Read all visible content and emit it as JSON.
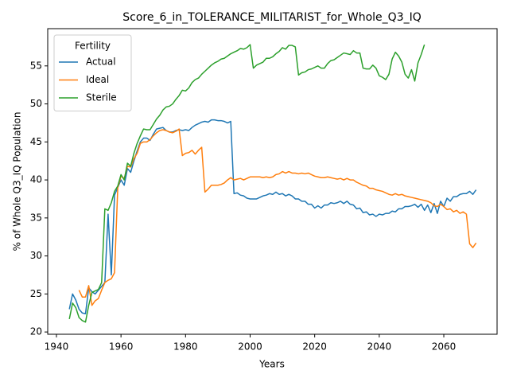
{
  "chart_data": {
    "type": "line",
    "title": "Score_6_in_TOLERANCE_MILITARIST_for_Whole_Q3_IQ",
    "xlabel": "Years",
    "ylabel": "% of Whole Q3_IQ Population",
    "legend_title": "Fertility",
    "legend": "upper left",
    "grid": false,
    "xlim": [
      1937.3,
      2076.5
    ],
    "xticks": [
      1940,
      1960,
      1980,
      2000,
      2020,
      2040,
      2060
    ],
    "ylim": [
      19.7,
      59.9
    ],
    "yticks": [
      20,
      25,
      30,
      35,
      40,
      45,
      50,
      55
    ],
    "x": [
      1944,
      1945,
      1946,
      1947,
      1948,
      1949,
      1950,
      1951,
      1952,
      1953,
      1954,
      1955,
      1956,
      1957,
      1958,
      1959,
      1960,
      1961,
      1962,
      1963,
      1964,
      1965,
      1966,
      1967,
      1968,
      1969,
      1970,
      1971,
      1972,
      1973,
      1974,
      1975,
      1976,
      1977,
      1978,
      1979,
      1980,
      1981,
      1982,
      1983,
      1984,
      1985,
      1986,
      1987,
      1988,
      1989,
      1990,
      1991,
      1992,
      1993,
      1994,
      1995,
      1996,
      1997,
      1998,
      1999,
      2000,
      2001,
      2002,
      2003,
      2004,
      2005,
      2006,
      2007,
      2008,
      2009,
      2010,
      2011,
      2012,
      2013,
      2014,
      2015,
      2016,
      2017,
      2018,
      2019,
      2020,
      2021,
      2022,
      2023,
      2024,
      2025,
      2026,
      2027,
      2028,
      2029,
      2030,
      2031,
      2032,
      2033,
      2034,
      2035,
      2036,
      2037,
      2038,
      2039,
      2040,
      2041,
      2042,
      2043,
      2044,
      2045,
      2046,
      2047,
      2048,
      2049,
      2050,
      2051,
      2052,
      2053,
      2054,
      2055,
      2056,
      2057,
      2058,
      2059,
      2060,
      2061,
      2062,
      2063,
      2064,
      2065,
      2066,
      2067,
      2068,
      2069,
      2070
    ],
    "series": [
      {
        "name": "Actual",
        "color": "#1f77b4",
        "values": [
          23,
          25,
          24.2,
          23,
          22.5,
          22.4,
          25.8,
          25.3,
          25,
          25.5,
          26,
          26.5,
          35.5,
          27.5,
          38,
          39,
          40,
          39.3,
          41.5,
          41,
          42.5,
          43.8,
          45,
          45.5,
          45.5,
          45.2,
          46,
          46.7,
          46.8,
          46.9,
          46.5,
          46.3,
          46.3,
          46.5,
          46.6,
          46.5,
          46.6,
          46.5,
          46.9,
          47.2,
          47.4,
          47.6,
          47.7,
          47.6,
          47.9,
          47.9,
          47.8,
          47.8,
          47.7,
          47.5,
          47.7,
          38.2,
          38.3,
          38,
          37.9,
          37.6,
          37.5,
          37.5,
          37.5,
          37.7,
          37.9,
          38,
          38.2,
          38.1,
          38.4,
          38.1,
          38.2,
          37.9,
          38.1,
          37.9,
          37.5,
          37.5,
          37.2,
          37.2,
          36.8,
          36.8,
          36.3,
          36.6,
          36.3,
          36.7,
          36.7,
          37,
          36.9,
          37,
          37.2,
          36.9,
          37.2,
          36.8,
          36.7,
          36.2,
          36.3,
          35.7,
          35.8,
          35.4,
          35.5,
          35.2,
          35.5,
          35.4,
          35.6,
          35.6,
          35.9,
          35.8,
          36.2,
          36.2,
          36.5,
          36.5,
          36.6,
          36.8,
          36.4,
          36.8,
          36,
          36.7,
          35.7,
          36.9,
          35.6,
          37.2,
          36.5,
          37.6,
          37.2,
          37.8,
          37.8,
          38.1,
          38.2,
          38.2,
          38.5,
          38.1,
          38.7
        ]
      },
      {
        "name": "Ideal",
        "color": "#ff7f0e",
        "values": [
          null,
          null,
          null,
          25.5,
          24.6,
          24.6,
          26.1,
          23.5,
          24.1,
          24.4,
          25.5,
          26.5,
          26.8,
          27,
          27.8,
          39,
          40.5,
          40.2,
          41.8,
          41.7,
          42.8,
          43.5,
          44.8,
          45,
          45,
          45.3,
          45.8,
          46.2,
          46.5,
          46.6,
          46.5,
          46.3,
          46.2,
          46.4,
          46.7,
          43.2,
          43.5,
          43.6,
          43.9,
          43.4,
          43.9,
          44.3,
          38.4,
          38.8,
          39.3,
          39.3,
          39.3,
          39.4,
          39.6,
          40,
          40.3,
          40,
          40.1,
          40.2,
          40,
          40.2,
          40.4,
          40.4,
          40.4,
          40.4,
          40.3,
          40.4,
          40.3,
          40.4,
          40.7,
          40.8,
          41.1,
          40.9,
          41.1,
          40.9,
          40.9,
          40.8,
          40.9,
          40.8,
          40.9,
          40.7,
          40.5,
          40.4,
          40.3,
          40.3,
          40.4,
          40.3,
          40.2,
          40.1,
          40.2,
          40,
          40.2,
          40,
          40,
          39.7,
          39.5,
          39.3,
          39.2,
          38.9,
          38.9,
          38.7,
          38.6,
          38.5,
          38.3,
          38.1,
          38,
          38.2,
          38,
          38.1,
          37.9,
          37.8,
          37.7,
          37.6,
          37.5,
          37.4,
          37.3,
          37.2,
          37,
          36.6,
          36.5,
          36.8,
          36.5,
          36.1,
          36.2,
          35.8,
          36,
          35.6,
          35.8,
          35.5,
          31.6,
          31.1,
          31.7
        ]
      },
      {
        "name": "Sterile",
        "color": "#2ca02c",
        "values": [
          21.7,
          23.8,
          23.2,
          21.9,
          21.5,
          21.3,
          23.5,
          25.2,
          25.4,
          25.6,
          26.5,
          36.2,
          36,
          37,
          38.5,
          39.2,
          40.7,
          40,
          42.2,
          41.8,
          43.5,
          44.8,
          45.8,
          46.7,
          46.6,
          46.6,
          47.3,
          48,
          48.5,
          49.2,
          49.6,
          49.7,
          50,
          50.6,
          51.1,
          51.8,
          51.7,
          52.1,
          52.8,
          53.2,
          53.4,
          53.9,
          54.3,
          54.7,
          55.1,
          55.4,
          55.6,
          55.9,
          56,
          56.3,
          56.6,
          56.8,
          57,
          57.3,
          57.2,
          57.4,
          57.8,
          54.7,
          55.1,
          55.3,
          55.5,
          56,
          56,
          56.2,
          56.6,
          56.9,
          57.4,
          57.2,
          57.7,
          57.7,
          57.5,
          53.8,
          54.1,
          54.2,
          54.5,
          54.6,
          54.8,
          55,
          54.7,
          54.7,
          55.3,
          55.7,
          55.8,
          56.1,
          56.4,
          56.7,
          56.6,
          56.5,
          57,
          56.7,
          56.7,
          54.7,
          54.6,
          54.6,
          55.1,
          54.7,
          53.7,
          53.5,
          53.2,
          53.9,
          55.9,
          56.8,
          56.3,
          55.5,
          53.9,
          53.4,
          54.5,
          53,
          55.4,
          56.5,
          57.8,
          null,
          null,
          null,
          null,
          null,
          null,
          null,
          null,
          null,
          null,
          null,
          null,
          null,
          null,
          null,
          null
        ]
      }
    ]
  }
}
